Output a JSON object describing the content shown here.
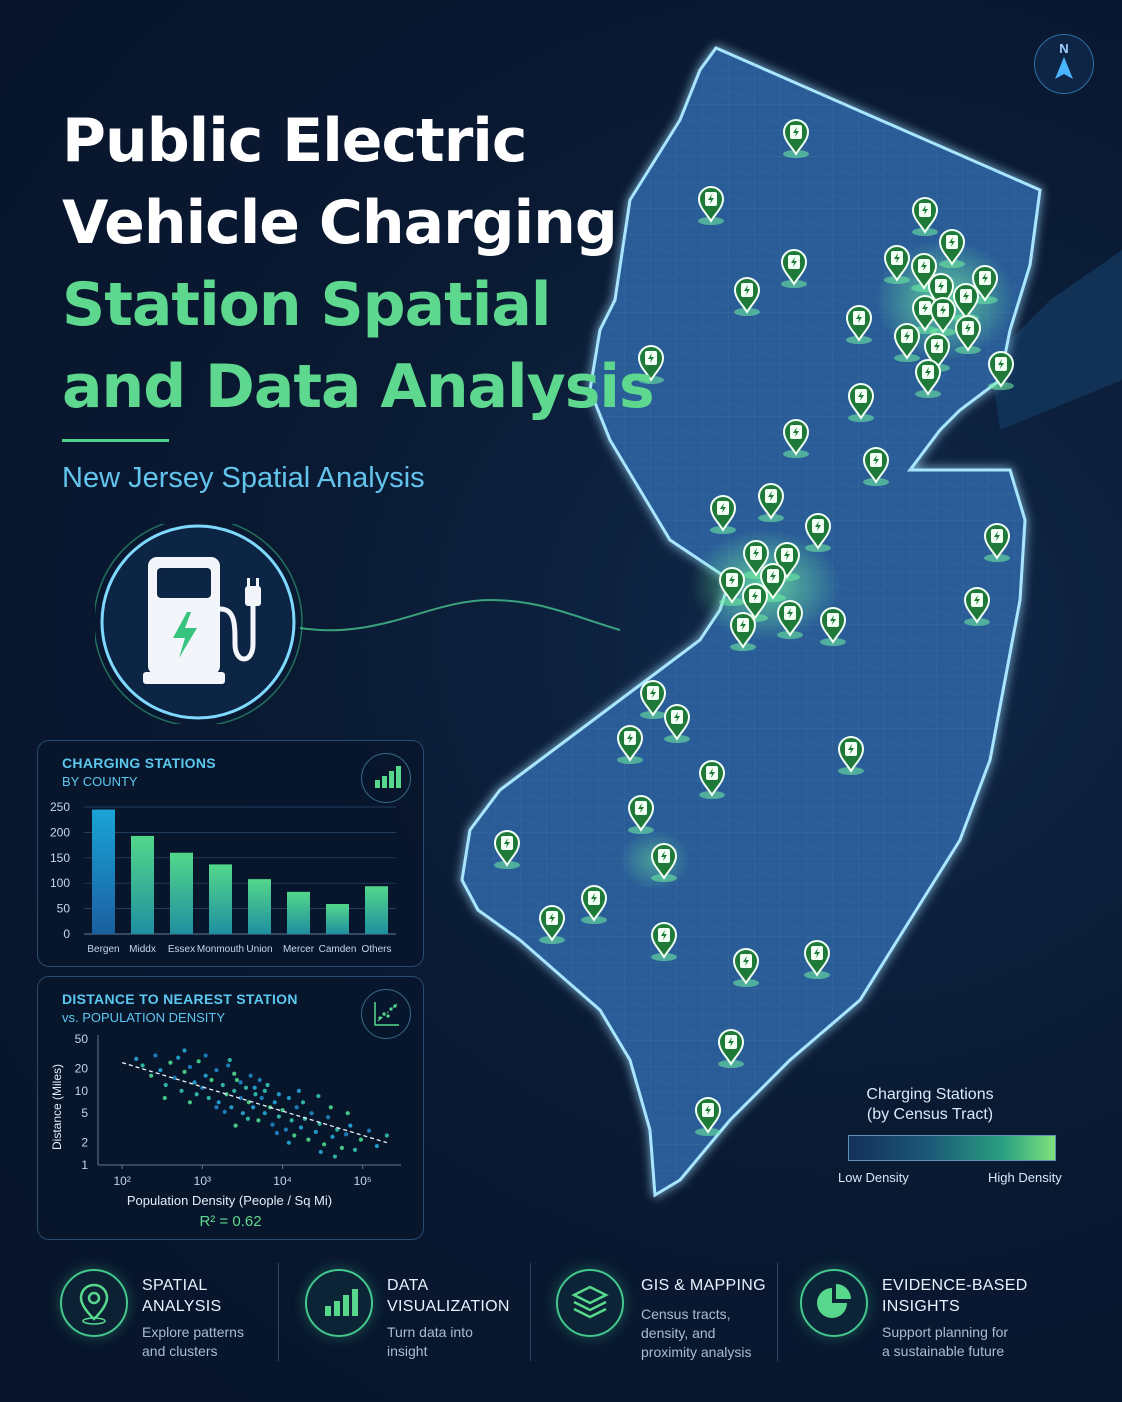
{
  "title": {
    "line1": "Public Electric",
    "line2": "Vehicle Charging",
    "line3": "Station Spatial",
    "line4": "and Data Analysis"
  },
  "subtitle": "New Jersey Spatial Analysis",
  "compass": {
    "label": "N"
  },
  "icons": {
    "charger": "ev-charger-icon",
    "bar_chart": "bar-chart-icon",
    "scatter": "scatter-plot-icon",
    "location": "location-pin-icon",
    "layers": "layers-icon",
    "pie": "pie-chart-icon",
    "compass": "north-arrow-icon"
  },
  "colors": {
    "background": "#0a1a33",
    "accent_green": "#5fd88f",
    "accent_blue": "#5cc8ef",
    "map_fill": "#2c5d97"
  },
  "bar_panel": {
    "title": "CHARGING STATIONS",
    "subtitle": "BY COUNTY"
  },
  "scatter_panel": {
    "title": "DISTANCE TO NEAREST STATION",
    "subtitle": "vs. POPULATION DENSITY",
    "r2": "R² = 0.62"
  },
  "legend": {
    "title_line1": "Charging Stations",
    "title_line2": "(by Census Tract)",
    "low": "Low Density",
    "high": "High Density"
  },
  "features": [
    {
      "title_line1": "SPATIAL",
      "title_line2": "ANALYSIS",
      "text_line1": "Explore patterns",
      "text_line2": "and clusters",
      "text_line3": ""
    },
    {
      "title_line1": "DATA",
      "title_line2": "VISUALIZATION",
      "text_line1": "Turn data into",
      "text_line2": "insight",
      "text_line3": ""
    },
    {
      "title_line1": "GIS & MAPPING",
      "title_line2": "",
      "text_line1": "Census tracts,",
      "text_line2": "density, and",
      "text_line3": "proximity analysis"
    },
    {
      "title_line1": "EVIDENCE-BASED",
      "title_line2": "INSIGHTS",
      "text_line1": "Support planning for",
      "text_line2": "a sustainable future",
      "text_line3": ""
    }
  ],
  "chart_data": [
    {
      "type": "bar",
      "title": "CHARGING STATIONS",
      "subtitle": "BY COUNTY",
      "categories": [
        "Bergen",
        "Middx",
        "Essex",
        "Monmouth",
        "Union",
        "Mercer",
        "Camden",
        "Others"
      ],
      "values": [
        245,
        193,
        160,
        137,
        108,
        83,
        59,
        94
      ],
      "yticks": [
        "0",
        "50",
        "100",
        "150",
        "200",
        "250"
      ],
      "ylim": [
        0,
        250
      ],
      "grid": true
    },
    {
      "type": "scatter",
      "title": "DISTANCE TO NEAREST STATION",
      "subtitle": "vs. POPULATION DENSITY",
      "xlabel": "Population Density (People / Sq Mi)",
      "ylabel": "Distance (Miles)",
      "x_scale": "log",
      "y_scale": "log",
      "xticks": [
        "10²",
        "10³",
        "10⁴",
        "10⁵"
      ],
      "yticks": [
        "1",
        "2",
        "5",
        "10",
        "20",
        "50"
      ],
      "xlim": [
        50,
        300000
      ],
      "ylim": [
        1,
        50
      ],
      "trendline": {
        "x": [
          100,
          200000
        ],
        "y": [
          24,
          2.0
        ]
      },
      "r2": 0.62,
      "points": [
        [
          150,
          27
        ],
        [
          180,
          22
        ],
        [
          230,
          16
        ],
        [
          260,
          30
        ],
        [
          300,
          19
        ],
        [
          350,
          12
        ],
        [
          400,
          24
        ],
        [
          450,
          15
        ],
        [
          500,
          28
        ],
        [
          550,
          10
        ],
        [
          600,
          18
        ],
        [
          700,
          21
        ],
        [
          800,
          13
        ],
        [
          850,
          9
        ],
        [
          900,
          25
        ],
        [
          1000,
          11
        ],
        [
          1100,
          16
        ],
        [
          1200,
          8
        ],
        [
          1300,
          14
        ],
        [
          1500,
          19
        ],
        [
          1600,
          7
        ],
        [
          1800,
          12
        ],
        [
          2000,
          9
        ],
        [
          2100,
          22
        ],
        [
          2300,
          6
        ],
        [
          2500,
          10
        ],
        [
          2700,
          14
        ],
        [
          3000,
          8
        ],
        [
          3200,
          5
        ],
        [
          3500,
          11
        ],
        [
          3800,
          7
        ],
        [
          4000,
          16
        ],
        [
          4300,
          6
        ],
        [
          4600,
          9
        ],
        [
          5000,
          4
        ],
        [
          5500,
          8
        ],
        [
          6000,
          5
        ],
        [
          6500,
          12
        ],
        [
          7000,
          6
        ],
        [
          7500,
          3.5
        ],
        [
          8000,
          7
        ],
        [
          9000,
          4.5
        ],
        [
          10000,
          5.5
        ],
        [
          11000,
          3
        ],
        [
          12000,
          8
        ],
        [
          13000,
          4
        ],
        [
          14000,
          2.5
        ],
        [
          15000,
          6
        ],
        [
          17000,
          3.2
        ],
        [
          19000,
          4.2
        ],
        [
          21000,
          2.2
        ],
        [
          23000,
          5
        ],
        [
          26000,
          2.8
        ],
        [
          29000,
          3.6
        ],
        [
          33000,
          1.9
        ],
        [
          37000,
          4.4
        ],
        [
          42000,
          2.4
        ],
        [
          48000,
          3
        ],
        [
          55000,
          1.7
        ],
        [
          62000,
          2.6
        ],
        [
          70000,
          3.4
        ],
        [
          80000,
          1.6
        ],
        [
          95000,
          2.2
        ],
        [
          120000,
          2.9
        ],
        [
          150000,
          1.8
        ],
        [
          200000,
          2.5
        ],
        [
          2500,
          17
        ],
        [
          3000,
          13
        ],
        [
          4500,
          11
        ],
        [
          6000,
          10
        ],
        [
          700,
          7
        ],
        [
          1500,
          6
        ],
        [
          9000,
          9
        ],
        [
          18000,
          7
        ],
        [
          40000,
          6
        ],
        [
          1100,
          30
        ],
        [
          600,
          35
        ],
        [
          2200,
          26
        ],
        [
          340,
          8
        ],
        [
          5200,
          14
        ],
        [
          16000,
          10
        ],
        [
          28000,
          8.5
        ],
        [
          65000,
          5
        ],
        [
          8500,
          2.7
        ],
        [
          12000,
          2.0
        ],
        [
          3700,
          4.2
        ],
        [
          2600,
          3.4
        ],
        [
          1900,
          5.2
        ],
        [
          30000,
          1.5
        ],
        [
          45000,
          1.3
        ]
      ]
    }
  ]
}
